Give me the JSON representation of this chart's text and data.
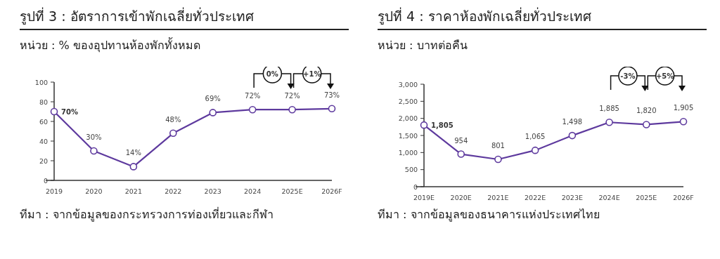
{
  "chart_data": [
    {
      "type": "line",
      "title": "รูปที่ 3 : อัตราการเข้าพักเฉลี่ยทั่วประเทศ",
      "subtitle": "หน่วย : % ของอุปทานห้องพักทั้งหมด",
      "categories": [
        "2019",
        "2020",
        "2021",
        "2022",
        "2023",
        "2024",
        "2025E",
        "2026F"
      ],
      "series": [
        {
          "color": "#5e3a9e",
          "values": [
            70,
            30,
            14,
            48,
            69,
            72,
            72,
            73
          ],
          "value_labels": [
            "70%",
            "30%",
            "14%",
            "48%",
            "69%",
            "72%",
            "72%",
            "73%"
          ]
        }
      ],
      "ylim": [
        0,
        100
      ],
      "yticks": [
        0,
        20,
        40,
        60,
        80,
        100
      ],
      "marker": "circle",
      "grid": false,
      "annotations": [
        "0%",
        "+1%",
        "ทีมา : จากข้อมูลของกระทรวงการท่องเที่ยวและกีฬา"
      ]
    },
    {
      "type": "line",
      "title": "รูปที่ 4 : ราคาห้องพักเฉลี่ยทั่วประเทศ",
      "subtitle": "หน่วย : บาทต่อคืน",
      "categories": [
        "2019E",
        "2020E",
        "2021E",
        "2022E",
        "2023E",
        "2024E",
        "2025E",
        "2026F"
      ],
      "series": [
        {
          "color": "#5e3a9e",
          "values": [
            1805,
            954,
            801,
            1065,
            1498,
            1885,
            1820,
            1905
          ],
          "value_labels": [
            "1,805",
            "954",
            "801",
            "1,065",
            "1,498",
            "1,885",
            "1,820",
            "1,905"
          ]
        }
      ],
      "ylim": [
        0,
        3000
      ],
      "yticks": [
        {
          "value": 0,
          "label": "0"
        },
        {
          "value": 500,
          "label": "500"
        },
        {
          "value": 1000,
          "label": "1,000"
        },
        {
          "value": 1500,
          "label": "1,500"
        },
        {
          "value": 2000,
          "label": "2,000"
        },
        {
          "value": 2500,
          "label": "2,500"
        },
        {
          "value": 3000,
          "label": "3,000"
        }
      ],
      "marker": "circle",
      "grid": false,
      "annotations": [
        "-3%",
        "+5%",
        "ทีมา : จากข้อมูลของธนาคารแห่งประเทศไทย"
      ]
    }
  ]
}
